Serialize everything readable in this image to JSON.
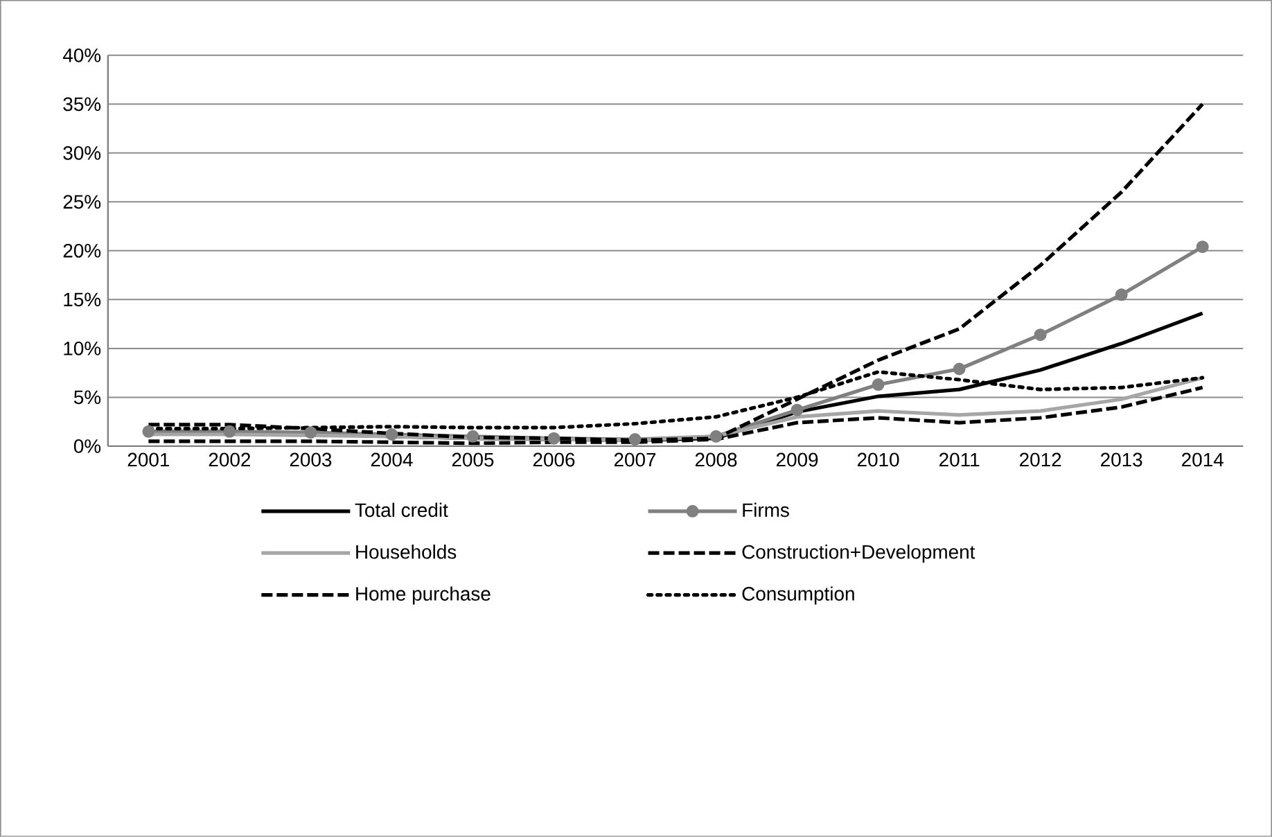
{
  "chart_data": {
    "type": "line",
    "categories": [
      "2001",
      "2002",
      "2003",
      "2004",
      "2005",
      "2006",
      "2007",
      "2008",
      "2009",
      "2010",
      "2011",
      "2012",
      "2013",
      "2014"
    ],
    "ylim": [
      0,
      40
    ],
    "yticks": [
      {
        "value": 0,
        "label": "0%"
      },
      {
        "value": 5,
        "label": "5%"
      },
      {
        "value": 10,
        "label": "10%"
      },
      {
        "value": 15,
        "label": "15%"
      },
      {
        "value": 20,
        "label": "20%"
      },
      {
        "value": 25,
        "label": "25%"
      },
      {
        "value": 30,
        "label": "30%"
      },
      {
        "value": 35,
        "label": "35%"
      },
      {
        "value": 40,
        "label": "40%"
      }
    ],
    "grid": "y",
    "legend": "bottom",
    "series": [
      {
        "name": "Total credit",
        "color": "#000000",
        "line_style": "solid",
        "marker": "none",
        "values": [
          1.5,
          1.5,
          1.3,
          1.0,
          0.8,
          0.7,
          0.6,
          0.8,
          3.5,
          5.1,
          5.8,
          7.8,
          10.5,
          13.6
        ]
      },
      {
        "name": "Firms",
        "color": "#808080",
        "line_style": "solid",
        "marker": "circle",
        "values": [
          1.5,
          1.5,
          1.4,
          1.2,
          1.0,
          0.8,
          0.7,
          1.0,
          3.7,
          6.3,
          7.9,
          11.4,
          15.5,
          20.4
        ]
      },
      {
        "name": "Households",
        "color": "#a6a6a6",
        "line_style": "solid",
        "marker": "none",
        "values": [
          1.2,
          1.2,
          1.1,
          1.0,
          0.8,
          0.7,
          0.6,
          1.0,
          3.0,
          3.6,
          3.2,
          3.6,
          4.8,
          7.0
        ]
      },
      {
        "name": "Construction+Development",
        "color": "#000000",
        "line_style": "dashed",
        "marker": "none",
        "values": [
          2.2,
          2.2,
          1.8,
          1.3,
          0.9,
          0.8,
          0.6,
          0.8,
          4.8,
          8.8,
          12.0,
          18.5,
          26.0,
          35.0
        ]
      },
      {
        "name": "Home purchase",
        "color": "#000000",
        "line_style": "dashed",
        "marker": "none",
        "values": [
          0.5,
          0.5,
          0.5,
          0.4,
          0.3,
          0.4,
          0.4,
          0.7,
          2.4,
          2.9,
          2.4,
          2.9,
          4.0,
          6.0
        ]
      },
      {
        "name": "Consumption",
        "color": "#000000",
        "line_style": "dotted",
        "marker": "none",
        "values": [
          1.8,
          1.8,
          1.9,
          2.0,
          1.9,
          1.9,
          2.3,
          3.0,
          5.0,
          7.6,
          6.8,
          5.8,
          6.0,
          7.0
        ]
      }
    ]
  }
}
